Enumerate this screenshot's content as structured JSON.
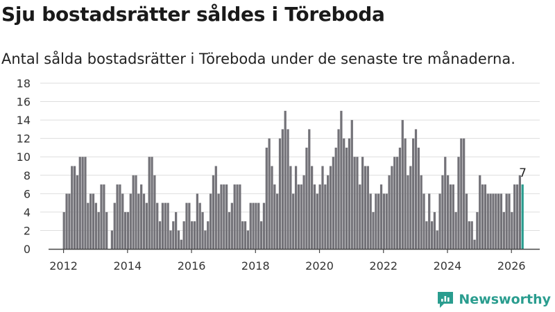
{
  "header": {
    "title": "Sju bostadsrätter såldes i Töreboda",
    "subtitle": "Antal sålda bostadsrätter i Töreboda under de senaste tre månaderna."
  },
  "brand": {
    "name": "Newsworthy"
  },
  "colors": {
    "bar": "#737278",
    "highlight": "#2a9d8f",
    "grid": "#dddddd",
    "axis": "#444444",
    "brand": "#2a9d8f"
  },
  "chart_data": {
    "type": "bar",
    "title": "Sju bostadsrätter såldes i Töreboda",
    "subtitle": "Antal sålda bostadsrätter i Töreboda under de senaste tre månaderna.",
    "xlabel": "",
    "ylabel": "",
    "ylim": [
      0,
      18
    ],
    "y_ticks": [
      0,
      2,
      4,
      6,
      8,
      10,
      12,
      14,
      16,
      18
    ],
    "x_ticks": [
      "2012",
      "2014",
      "2016",
      "2018",
      "2020",
      "2022",
      "2024",
      "2026"
    ],
    "start": "2012-01",
    "frequency": "monthly",
    "grid": true,
    "last_value_label": "7",
    "values": [
      4,
      6,
      6,
      9,
      9,
      8,
      10,
      10,
      10,
      5,
      6,
      6,
      5,
      4,
      7,
      7,
      4,
      0,
      2,
      5,
      7,
      7,
      6,
      4,
      4,
      6,
      8,
      8,
      6,
      7,
      6,
      5,
      10,
      10,
      8,
      5,
      3,
      5,
      5,
      5,
      2,
      3,
      4,
      2,
      1,
      3,
      5,
      5,
      3,
      3,
      6,
      5,
      4,
      2,
      3,
      6,
      8,
      9,
      6,
      7,
      7,
      7,
      4,
      5,
      7,
      7,
      7,
      3,
      3,
      2,
      5,
      5,
      5,
      5,
      3,
      5,
      11,
      12,
      9,
      7,
      6,
      12,
      13,
      15,
      13,
      9,
      6,
      9,
      7,
      7,
      8,
      11,
      13,
      9,
      7,
      6,
      7,
      9,
      7,
      8,
      9,
      10,
      11,
      13,
      15,
      12,
      11,
      12,
      14,
      10,
      10,
      7,
      10,
      9,
      9,
      6,
      4,
      6,
      6,
      7,
      6,
      6,
      8,
      9,
      10,
      10,
      11,
      14,
      12,
      8,
      9,
      12,
      13,
      11,
      8,
      6,
      3,
      6,
      3,
      4,
      2,
      6,
      8,
      10,
      8,
      7,
      7,
      4,
      10,
      12,
      12,
      6,
      3,
      3,
      1,
      4,
      8,
      7,
      7,
      6,
      6,
      6,
      6,
      6,
      6,
      4,
      6,
      6,
      4,
      7,
      7,
      8,
      7
    ],
    "highlight_last": true
  }
}
